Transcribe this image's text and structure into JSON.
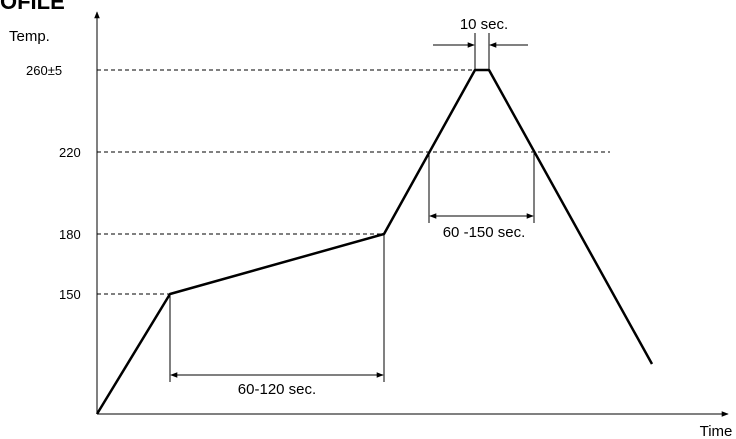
{
  "header": {
    "title": "OFILE"
  },
  "axes": {
    "y_label": "Temp.",
    "x_label": "Time"
  },
  "levels": [
    {
      "label": "260±5"
    },
    {
      "label": "220"
    },
    {
      "label": "180"
    },
    {
      "label": "150"
    }
  ],
  "durations": {
    "peak": "10 sec.",
    "above_220": "60 -150 sec.",
    "preheat": "60-120 sec."
  },
  "chart_data": {
    "type": "line",
    "title": "",
    "xlabel": "Time",
    "ylabel": "Temp.",
    "y_ticks": [
      "150",
      "180",
      "220",
      "260±5"
    ],
    "profile_temps": [
      150,
      180,
      220,
      260,
      260,
      220
    ],
    "annotations": [
      "10 sec.",
      "60 -150 sec.",
      "60-120 sec."
    ]
  }
}
